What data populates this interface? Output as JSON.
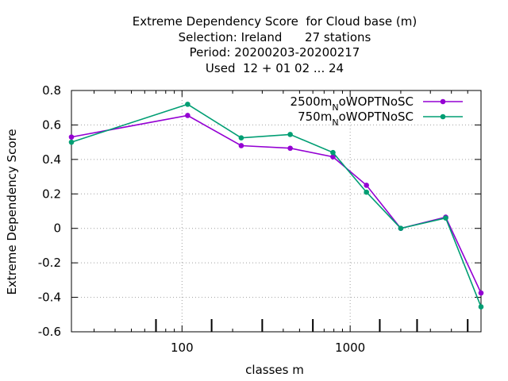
{
  "chart_data": {
    "type": "line",
    "title_lines": [
      "Extreme Dependency Score  for Cloud base (m)",
      "Selection: Ireland      27 stations",
      "Period: 20200203-20200217",
      "Used  12 + 01 02 ... 24"
    ],
    "xlabel": "classes m",
    "ylabel": "Extreme Dependency Score",
    "x_scale": "log",
    "xlim": [
      22,
      6000
    ],
    "ylim": [
      -0.6,
      0.8
    ],
    "x_ticks": [
      {
        "value": 100,
        "label": "100"
      },
      {
        "value": 1000,
        "label": "1000"
      }
    ],
    "y_ticks": [
      {
        "value": 0.8,
        "label": "0.8"
      },
      {
        "value": 0.6,
        "label": "0.6"
      },
      {
        "value": 0.4,
        "label": "0.4"
      },
      {
        "value": 0.2,
        "label": "0.2"
      },
      {
        "value": 0,
        "label": "0"
      },
      {
        "value": -0.2,
        "label": "-0.2"
      },
      {
        "value": -0.4,
        "label": "-0.4"
      },
      {
        "value": -0.6,
        "label": "-0.6"
      }
    ],
    "grid": true,
    "legend_position": "top-right",
    "class_markers": [
      70,
      150,
      300,
      600,
      1500,
      2500,
      5000
    ],
    "series": [
      {
        "name_main": "2500m",
        "name_sub": "N",
        "name_tail": "oWOPTNoSC",
        "color": "#9400d3",
        "x": [
          22,
          108,
          225,
          440,
          790,
          1250,
          2000,
          3700,
          6000
        ],
        "y": [
          0.53,
          0.655,
          0.48,
          0.465,
          0.415,
          0.25,
          0.0,
          0.065,
          -0.375
        ]
      },
      {
        "name_main": "750m",
        "name_sub": "N",
        "name_tail": "oWOPTNoSC",
        "color": "#009e73",
        "x": [
          22,
          108,
          225,
          440,
          790,
          1250,
          2000,
          3700,
          6000
        ],
        "y": [
          0.5,
          0.72,
          0.525,
          0.545,
          0.44,
          0.21,
          0.0,
          0.06,
          -0.455
        ]
      }
    ]
  }
}
